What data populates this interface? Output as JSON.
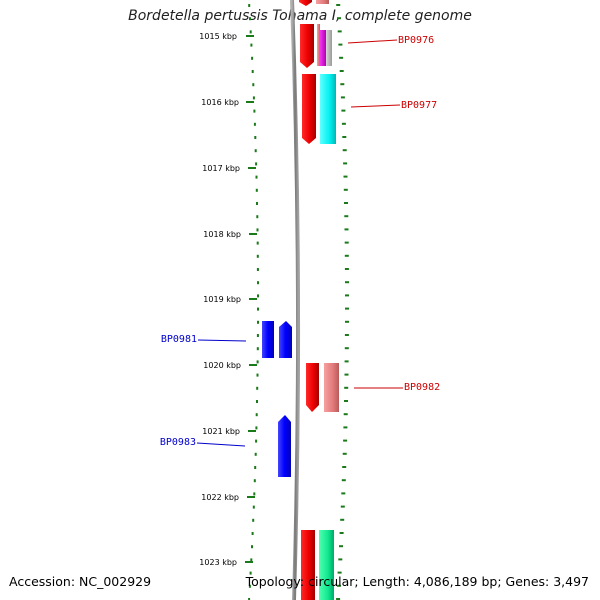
{
  "title": "Bordetella pertussis Tohama I, complete genome",
  "footer": {
    "accession": "Accession: NC_002929",
    "summary": "Topology: circular; Length: 4,086,189 bp; Genes: 3,497"
  },
  "colors": {
    "backbone": "#8c8c8c",
    "ticks": "#1a7a1a",
    "forward_label": "#cc0000",
    "reverse_label": "#0000cc",
    "reverse_gene": "#0000ff"
  },
  "scale": {
    "labels": [
      "1015 kbp",
      "1016 kbp",
      "1017 kbp",
      "1018 kbp",
      "1019 kbp",
      "1020 kbp",
      "1021 kbp",
      "1022 kbp",
      "1023 kbp"
    ]
  },
  "gene_labels": {
    "bp0976": "BP0976",
    "bp0977": "BP0977",
    "bp0982": "BP0982",
    "bp0981": "BP0981",
    "bp0983": "BP0983"
  }
}
